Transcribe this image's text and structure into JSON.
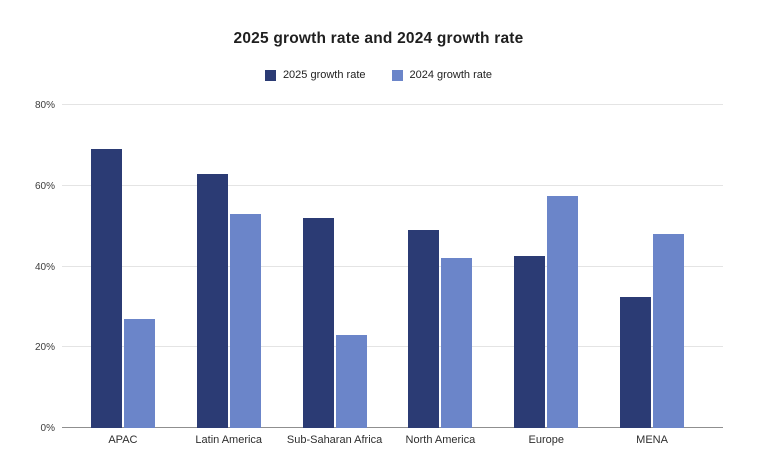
{
  "title": "2025 growth rate and 2024 growth rate",
  "legend": {
    "items": [
      {
        "label": "2025 growth rate",
        "color": "#2b3b74"
      },
      {
        "label": "2024 growth rate",
        "color": "#6b85c9"
      }
    ]
  },
  "chart_data": {
    "type": "bar",
    "title": "2025 growth rate and 2024 growth rate",
    "categories": [
      "APAC",
      "Latin America",
      "Sub-Saharan Africa",
      "North America",
      "Europe",
      "MENA"
    ],
    "series": [
      {
        "name": "2025 growth rate",
        "color": "#2b3b74",
        "values": [
          69,
          63,
          52,
          49,
          42.5,
          32.5
        ]
      },
      {
        "name": "2024 growth rate",
        "color": "#6b85c9",
        "values": [
          27,
          53,
          23,
          42,
          57.5,
          48
        ]
      }
    ],
    "xlabel": "",
    "ylabel": "",
    "ylim": [
      0,
      80
    ],
    "yticks": [
      {
        "value": 0,
        "label": "0%"
      },
      {
        "value": 20,
        "label": "20%"
      },
      {
        "value": 40,
        "label": "40%"
      },
      {
        "value": 60,
        "label": "60%"
      },
      {
        "value": 80,
        "label": "80%"
      }
    ],
    "grid": true,
    "legend_position": "top"
  }
}
